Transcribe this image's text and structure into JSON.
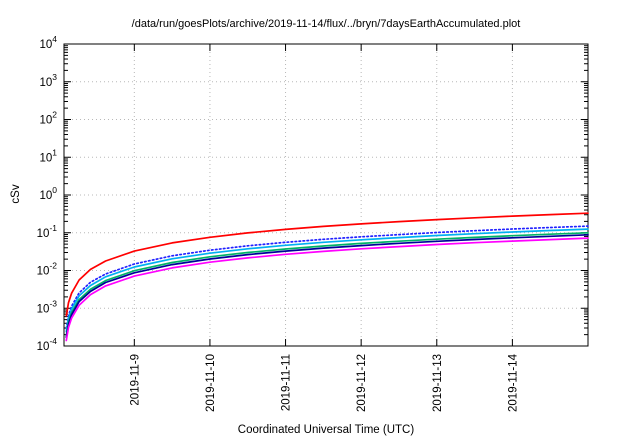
{
  "chart_data": {
    "type": "line",
    "title": "/data/run/goesPlots/archive/2019-11-14/flux/../bryn/7daysEarthAccumulated.plot",
    "xlabel": "Coordinated Universal Time (UTC)",
    "ylabel": "cSv",
    "ylog": true,
    "ylim_exponents": [
      -4,
      4
    ],
    "xlim": [
      0,
      6.93
    ],
    "grid": true,
    "legend": "none",
    "y_tick_exponents": [
      4,
      3,
      2,
      1,
      0,
      -1,
      -2,
      -3,
      -4
    ],
    "y_tick_base": "10",
    "x_ticks": [
      {
        "t": 0.93,
        "label": "2019-11-9"
      },
      {
        "t": 1.93,
        "label": "2019-11-10"
      },
      {
        "t": 2.93,
        "label": "2019-11-11"
      },
      {
        "t": 3.93,
        "label": "2019-11-12"
      },
      {
        "t": 4.93,
        "label": "2019-11-13"
      },
      {
        "t": 5.93,
        "label": "2019-11-14"
      }
    ],
    "x": [
      0.03,
      0.06,
      0.1,
      0.2,
      0.35,
      0.55,
      0.93,
      1.43,
      1.93,
      2.43,
      2.93,
      3.43,
      3.93,
      4.43,
      4.93,
      5.43,
      5.93,
      6.43,
      6.93
    ],
    "series": [
      {
        "name": "red",
        "color": "#ff0000",
        "dash": "",
        "values": [
          0.00063,
          0.0014,
          0.0025,
          0.0056,
          0.0107,
          0.0179,
          0.0327,
          0.0538,
          0.0759,
          0.099,
          0.1228,
          0.1472,
          0.1719,
          0.197,
          0.2231,
          0.2492,
          0.2759,
          0.3026,
          0.33
        ]
      },
      {
        "name": "blue-dotted",
        "color": "#2222ff",
        "dash": "1.5,2.5",
        "values": [
          0.00029,
          0.00064,
          0.00114,
          0.00255,
          0.0049,
          0.0081,
          0.0149,
          0.0245,
          0.0345,
          0.045,
          0.0558,
          0.0669,
          0.0782,
          0.0896,
          0.1014,
          0.1133,
          0.1254,
          0.1376,
          0.15
        ]
      },
      {
        "name": "cyan",
        "color": "#00b0f0",
        "dash": "",
        "values": [
          0.00024,
          0.00053,
          0.00095,
          0.00213,
          0.004,
          0.0068,
          0.0124,
          0.0204,
          0.0288,
          0.0375,
          0.0465,
          0.0558,
          0.0651,
          0.0746,
          0.0845,
          0.0944,
          0.1045,
          0.1146,
          0.125
        ]
      },
      {
        "name": "green",
        "color": "#00b366",
        "dash": "",
        "values": [
          0.00019,
          0.00043,
          0.00076,
          0.0017,
          0.0032,
          0.0054,
          0.0099,
          0.0163,
          0.023,
          0.03,
          0.0372,
          0.0446,
          0.0521,
          0.0597,
          0.0676,
          0.0755,
          0.0836,
          0.0917,
          0.1
        ]
      },
      {
        "name": "navy",
        "color": "#000099",
        "dash": "",
        "values": [
          0.00017,
          0.00038,
          0.00067,
          0.0015,
          0.0028,
          0.0048,
          0.0087,
          0.0143,
          0.0202,
          0.0264,
          0.0327,
          0.0392,
          0.0458,
          0.0525,
          0.0595,
          0.0664,
          0.0736,
          0.0807,
          0.088
        ]
      },
      {
        "name": "magenta",
        "color": "#ff00ff",
        "dash": "",
        "values": [
          0.00014,
          0.00031,
          0.00055,
          0.0012,
          0.0023,
          0.0039,
          0.0071,
          0.0117,
          0.0166,
          0.0216,
          0.0268,
          0.0321,
          0.0375,
          0.043,
          0.0487,
          0.0544,
          0.0602,
          0.066,
          0.072
        ]
      }
    ],
    "grid_color": "#b8b8b8",
    "border_color": "#000000"
  }
}
